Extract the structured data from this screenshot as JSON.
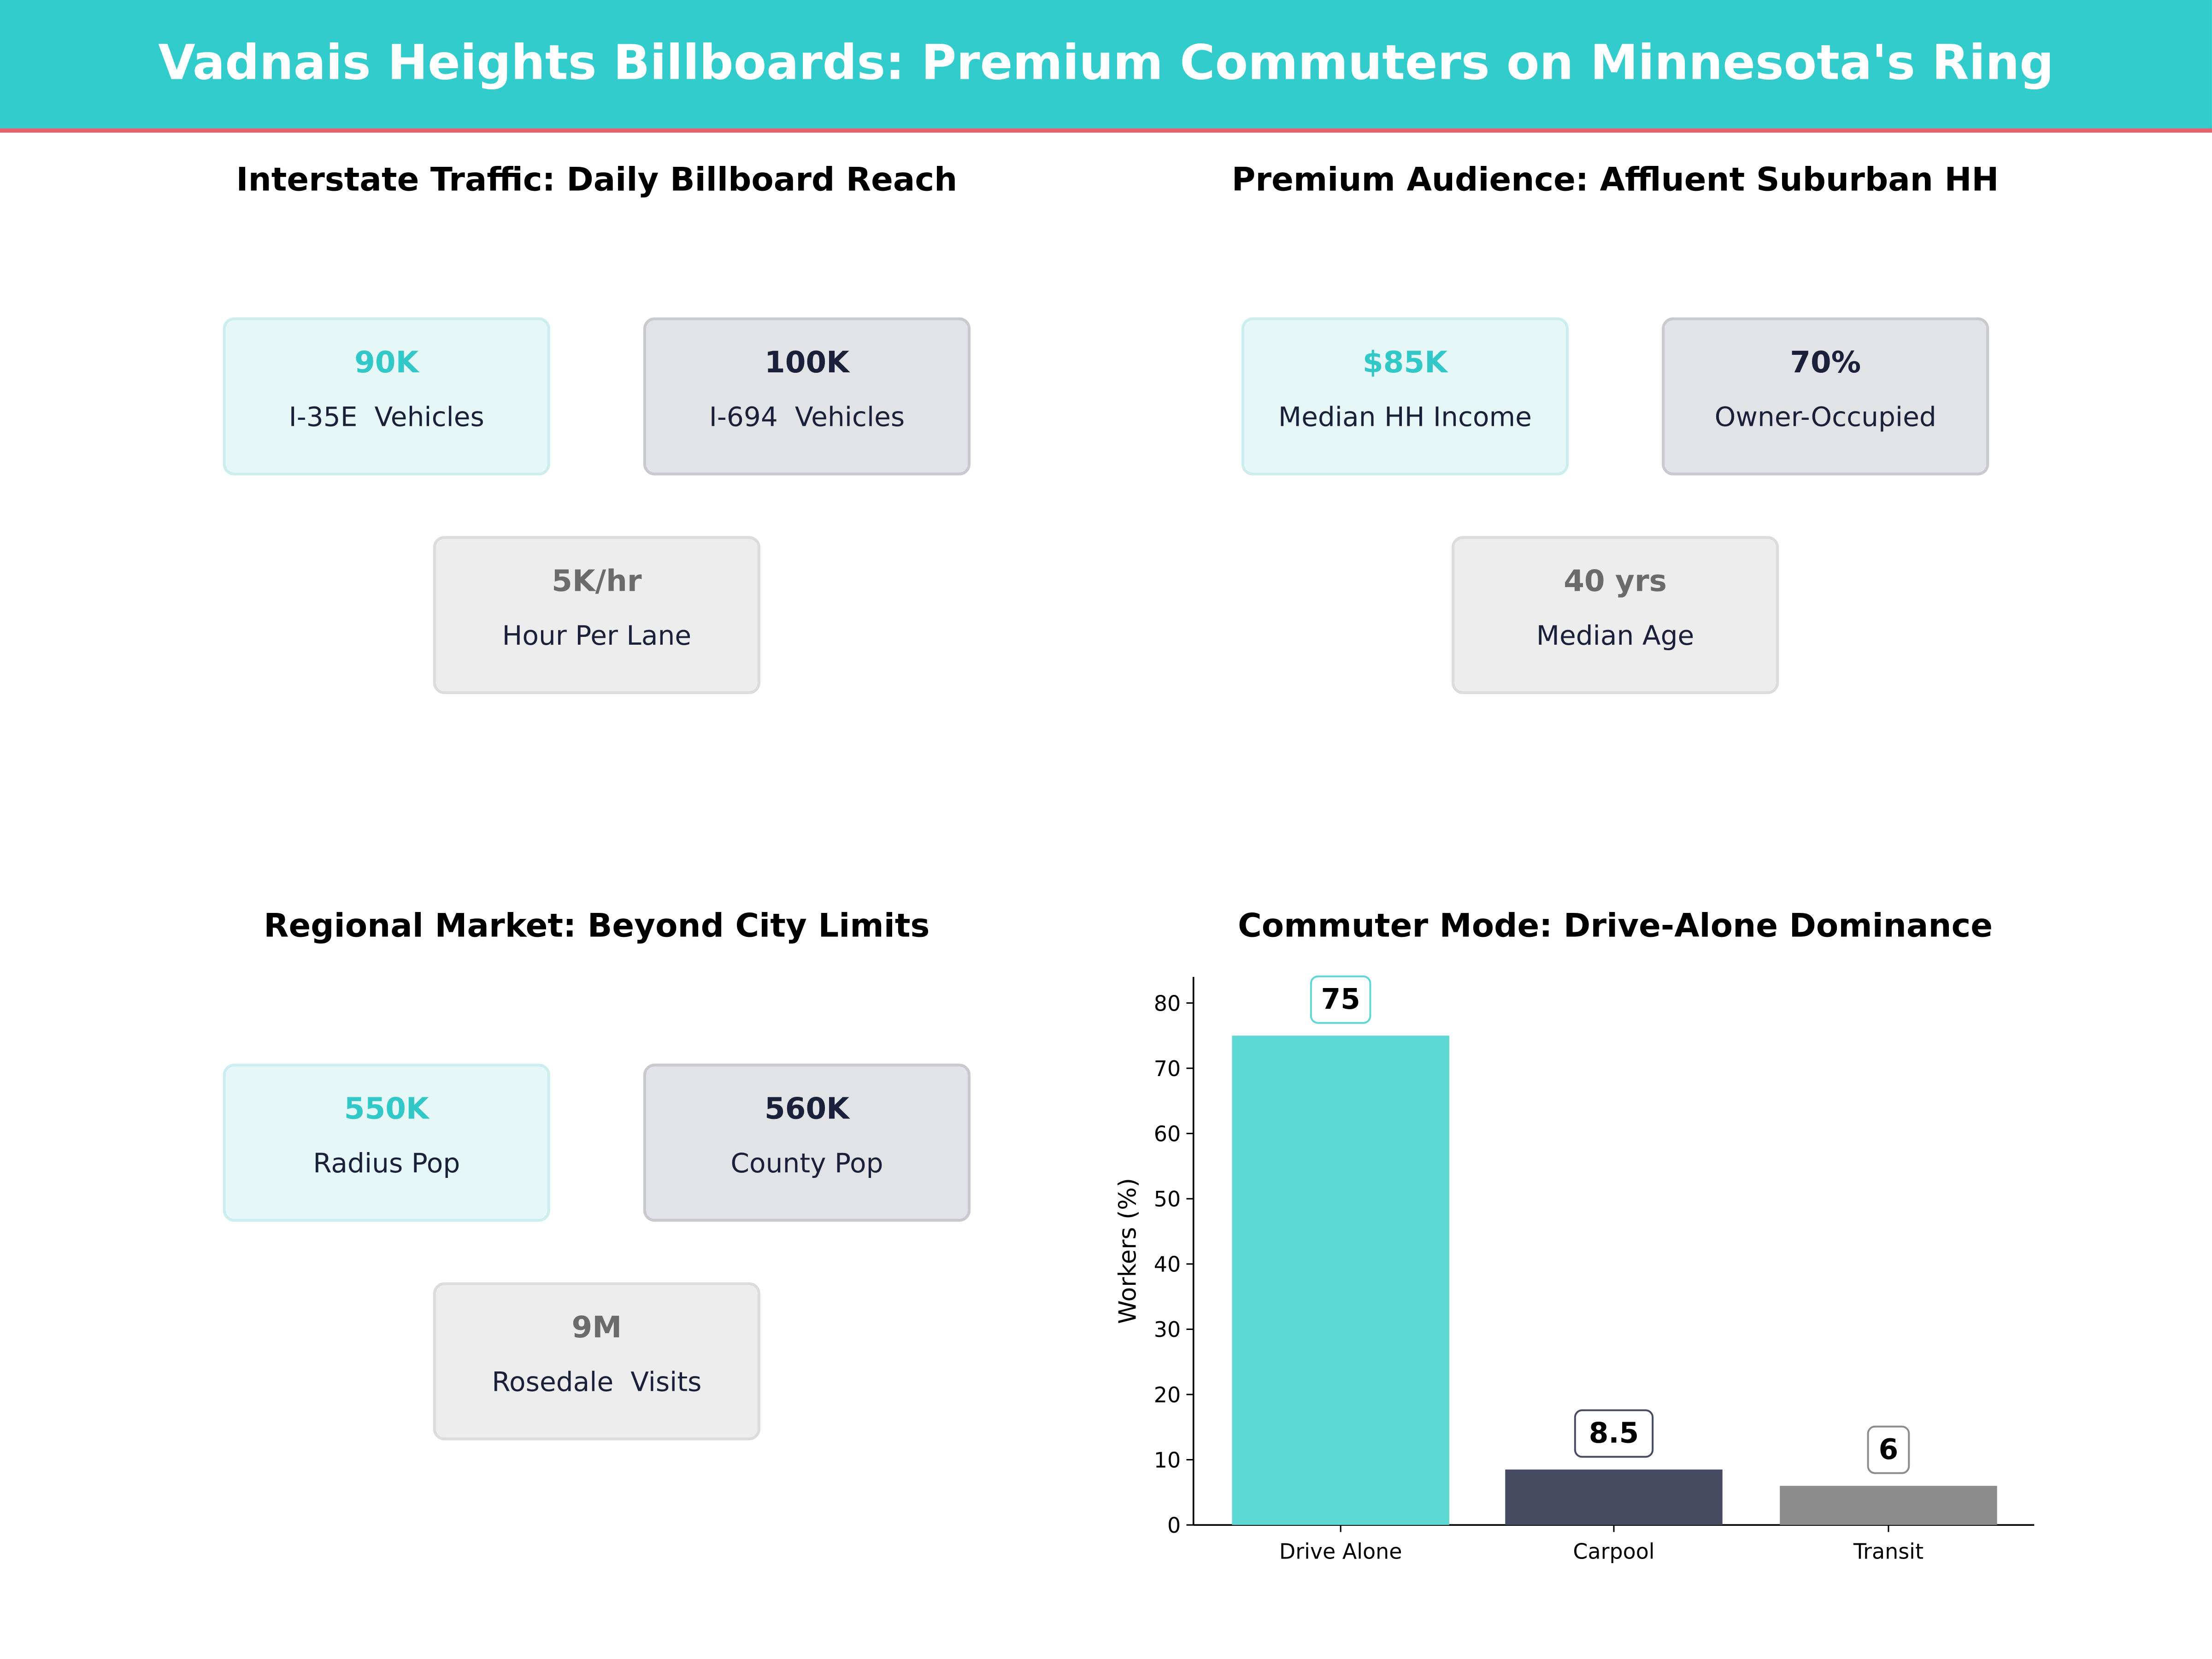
{
  "title": "Vadnais Heights Billboards: Premium Commuters on Minnesota's Ring",
  "colors": {
    "header": "#33cccc",
    "accent_line": "#e8616f",
    "teal": "#5dd8d5",
    "navy": "#464b62",
    "gray": "#8c8c8c"
  },
  "panels": [
    {
      "title": "Interstate Traffic: Daily Billboard Reach",
      "cards": [
        {
          "value": "90K",
          "label": "I-35E  Vehicles"
        },
        {
          "value": "100K",
          "label": "I-694  Vehicles"
        },
        {
          "value": "5K/hr",
          "label": "Hour Per Lane"
        }
      ]
    },
    {
      "title": "Premium Audience: Affluent Suburban HH",
      "cards": [
        {
          "value": "$85K",
          "label": "Median HH Income"
        },
        {
          "value": "70%",
          "label": "Owner-Occupied"
        },
        {
          "value": "40 yrs",
          "label": "Median Age"
        }
      ]
    },
    {
      "title": "Regional Market: Beyond City Limits",
      "cards": [
        {
          "value": "550K",
          "label": "Radius Pop"
        },
        {
          "value": "560K",
          "label": "County Pop"
        },
        {
          "value": "9M",
          "label": "Rosedale  Visits"
        }
      ]
    }
  ],
  "chart_data": {
    "type": "bar",
    "title": "Commuter Mode: Drive-Alone Dominance",
    "categories": [
      "Drive Alone",
      "Carpool",
      "Transit"
    ],
    "values": [
      75,
      8.5,
      6
    ],
    "value_labels": [
      "75",
      "8.5",
      "6"
    ],
    "bar_colors": [
      "#5dd8d5",
      "#464b62",
      "#8c8c8c"
    ],
    "xlabel": "",
    "ylabel": "Workers (%)",
    "ylim": [
      0,
      84
    ],
    "yticks": [
      0,
      10,
      20,
      30,
      40,
      50,
      60,
      70,
      80
    ],
    "grid": false
  }
}
